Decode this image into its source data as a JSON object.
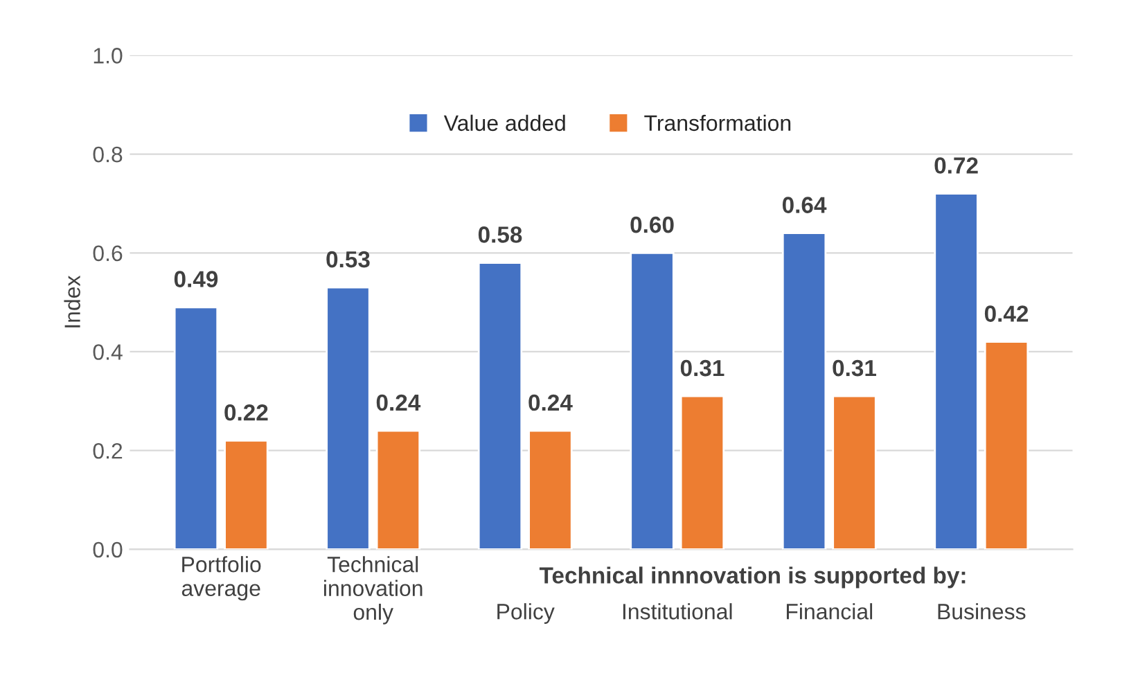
{
  "chart_data": {
    "type": "bar",
    "categories": [
      "Portfolio\naverage",
      "Technical\ninnovation\nonly",
      "Policy",
      "Institutional",
      "Financial",
      "Business"
    ],
    "series": [
      {
        "name": "Value added",
        "color": "#4472c4",
        "values": [
          0.49,
          0.53,
          0.58,
          0.6,
          0.64,
          0.72
        ],
        "value_labels": [
          "0.49",
          "0.53",
          "0.58",
          "0.60",
          "0.64",
          "0.72"
        ]
      },
      {
        "name": "Transformation",
        "color": "#ed7d31",
        "values": [
          0.22,
          0.24,
          0.24,
          0.31,
          0.31,
          0.42
        ],
        "value_labels": [
          "0.22",
          "0.24",
          "0.24",
          "0.31",
          "0.31",
          "0.42"
        ]
      }
    ],
    "ylabel": "Index",
    "ylim": [
      0,
      1
    ],
    "yticks": [
      {
        "value": 0,
        "label": "0.0"
      },
      {
        "value": 0.2,
        "label": "0.2"
      },
      {
        "value": 0.4,
        "label": "0.4"
      },
      {
        "value": 0.6,
        "label": "0.6"
      },
      {
        "value": 0.8,
        "label": "0.8"
      },
      {
        "value": 1,
        "label": "1.0"
      }
    ],
    "annotations": [
      "Technical innnovation is supported by:"
    ],
    "grid": "y",
    "legend": "top"
  }
}
